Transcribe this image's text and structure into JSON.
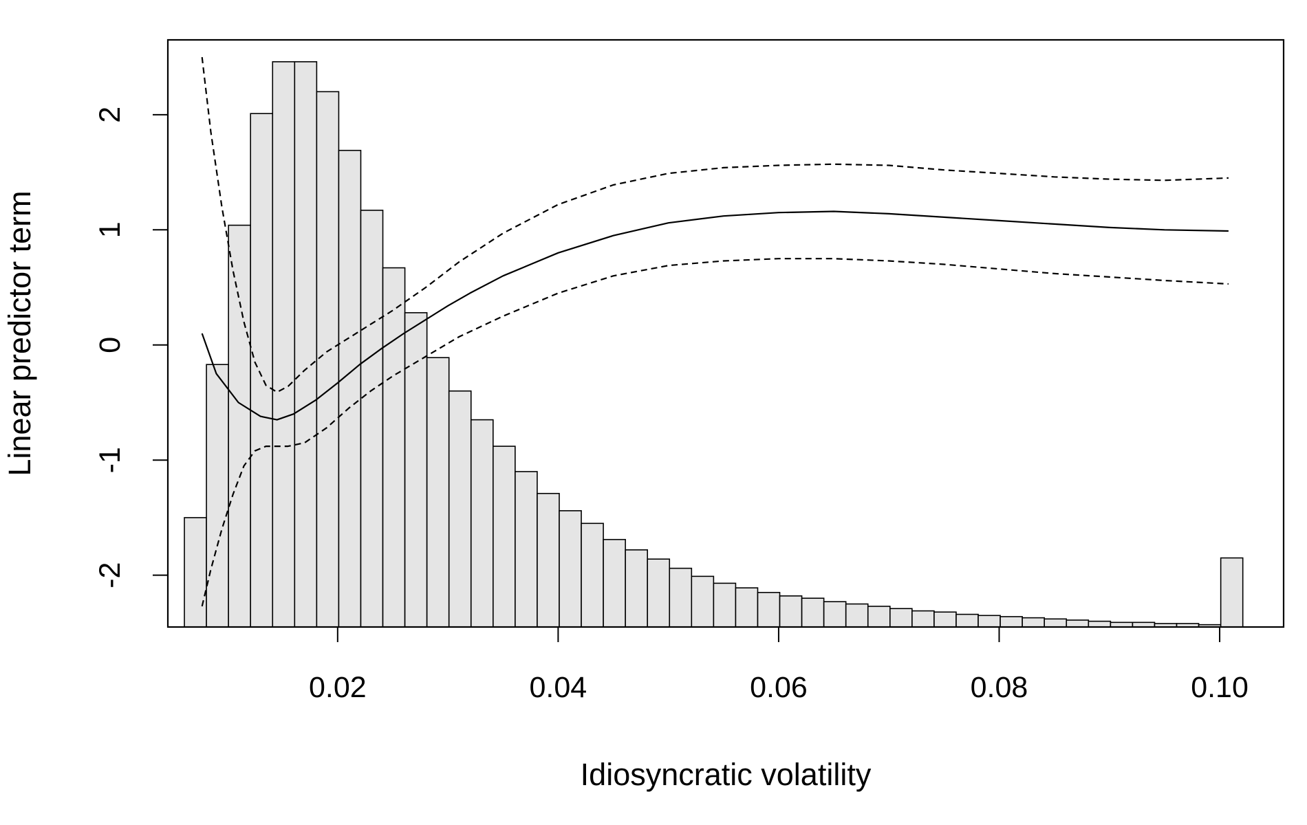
{
  "chart_data": {
    "type": "line",
    "title": "",
    "xlabel": "Idiosyncratic volatility",
    "ylabel": "Linear predictor term",
    "xlim": [
      0.0046,
      0.1058
    ],
    "ylim": [
      -2.45,
      2.65
    ],
    "x_ticks": [
      0.02,
      0.04,
      0.06,
      0.08,
      0.1
    ],
    "x_tick_labels": [
      "0.02",
      "0.04",
      "0.06",
      "0.08",
      "0.10"
    ],
    "y_ticks": [
      -2,
      -1,
      0,
      1,
      2
    ],
    "y_tick_labels": [
      "-2",
      "-1",
      "0",
      "1",
      "2"
    ],
    "grid": false,
    "histogram": {
      "description_unit": "bar tops in linear-predictor units",
      "bin_start": 0.0061,
      "bin_width": 0.002,
      "base": -2.45,
      "tops": [
        -1.5,
        -0.17,
        1.04,
        2.01,
        2.46,
        2.46,
        2.2,
        1.69,
        1.17,
        0.67,
        0.28,
        -0.11,
        -0.4,
        -0.65,
        -0.88,
        -1.1,
        -1.29,
        -1.44,
        -1.55,
        -1.69,
        -1.78,
        -1.86,
        -1.94,
        -2.01,
        -2.07,
        -2.11,
        -2.15,
        -2.18,
        -2.2,
        -2.23,
        -2.25,
        -2.27,
        -2.29,
        -2.31,
        -2.32,
        -2.34,
        -2.35,
        -2.36,
        -2.37,
        -2.38,
        -2.39,
        -2.4,
        -2.41,
        -2.41,
        -2.42,
        -2.42,
        -2.43,
        -1.85
      ]
    },
    "series": [
      {
        "style": "solid",
        "x": [
          0.0077,
          0.009,
          0.011,
          0.013,
          0.0145,
          0.016,
          0.018,
          0.02,
          0.022,
          0.024,
          0.026,
          0.028,
          0.03,
          0.032,
          0.035,
          0.04,
          0.045,
          0.05,
          0.055,
          0.06,
          0.065,
          0.07,
          0.075,
          0.08,
          0.085,
          0.09,
          0.095,
          0.1008
        ],
        "values": [
          0.1,
          -0.25,
          -0.5,
          -0.62,
          -0.65,
          -0.6,
          -0.48,
          -0.33,
          -0.17,
          -0.03,
          0.1,
          0.22,
          0.34,
          0.45,
          0.6,
          0.8,
          0.95,
          1.06,
          1.12,
          1.15,
          1.16,
          1.14,
          1.11,
          1.08,
          1.05,
          1.02,
          1.0,
          0.99
        ]
      },
      {
        "style": "dashed",
        "x": [
          0.0077,
          0.0085,
          0.0095,
          0.0105,
          0.0115,
          0.0125,
          0.0135,
          0.0145,
          0.0155,
          0.017,
          0.019,
          0.021,
          0.023,
          0.025,
          0.028,
          0.031,
          0.035,
          0.04,
          0.045,
          0.05,
          0.055,
          0.06,
          0.065,
          0.07,
          0.075,
          0.08,
          0.085,
          0.09,
          0.095,
          0.1008
        ],
        "values": [
          2.5,
          1.85,
          1.2,
          0.65,
          0.2,
          -0.15,
          -0.35,
          -0.41,
          -0.36,
          -0.22,
          -0.06,
          0.06,
          0.18,
          0.3,
          0.5,
          0.72,
          0.97,
          1.22,
          1.39,
          1.49,
          1.54,
          1.56,
          1.57,
          1.56,
          1.52,
          1.49,
          1.46,
          1.44,
          1.43,
          1.45
        ]
      },
      {
        "style": "dashed",
        "x": [
          0.0077,
          0.0085,
          0.0095,
          0.0105,
          0.0115,
          0.0125,
          0.0135,
          0.0145,
          0.0155,
          0.017,
          0.019,
          0.021,
          0.023,
          0.025,
          0.028,
          0.031,
          0.035,
          0.04,
          0.045,
          0.05,
          0.055,
          0.06,
          0.065,
          0.07,
          0.075,
          0.08,
          0.085,
          0.09,
          0.095,
          0.1008
        ],
        "values": [
          -2.27,
          -1.95,
          -1.6,
          -1.3,
          -1.05,
          -0.92,
          -0.88,
          -0.88,
          -0.88,
          -0.85,
          -0.72,
          -0.55,
          -0.4,
          -0.27,
          -0.1,
          0.07,
          0.25,
          0.45,
          0.6,
          0.69,
          0.73,
          0.75,
          0.75,
          0.73,
          0.7,
          0.66,
          0.62,
          0.59,
          0.56,
          0.53
        ]
      }
    ]
  }
}
